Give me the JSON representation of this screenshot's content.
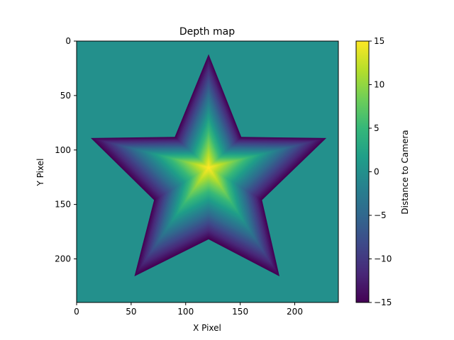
{
  "chart_data": {
    "type": "heatmap",
    "title": "Depth map",
    "xlabel": "X Pixel",
    "ylabel": "Y Pixel",
    "image_width": 240,
    "image_height": 240,
    "xlim": [
      0,
      240
    ],
    "ylim": [
      240,
      0
    ],
    "y_inverted": true,
    "x_ticks": [
      0,
      50,
      100,
      150,
      200
    ],
    "y_ticks": [
      0,
      50,
      100,
      150,
      200
    ],
    "background_value": 0,
    "star": {
      "center": [
        121,
        116
      ],
      "outer_vertices": [
        [
          121,
          12
        ],
        [
          229,
          89
        ],
        [
          186,
          216
        ],
        [
          53,
          216
        ],
        [
          13,
          89
        ]
      ],
      "inner_vertices": [
        [
          151,
          88
        ],
        [
          170,
          146
        ],
        [
          121,
          182
        ],
        [
          71,
          146
        ],
        [
          90,
          88
        ]
      ],
      "center_value": 15,
      "edge_value": -15
    },
    "colorbar": {
      "label": "Distance to Camera",
      "min": -15,
      "max": 15,
      "ticks": [
        -15,
        -10,
        -5,
        0,
        5,
        10,
        15
      ],
      "colormap": "viridis",
      "colors": [
        "#440154",
        "#482878",
        "#3e4989",
        "#31688e",
        "#26828e",
        "#1f9e89",
        "#35b779",
        "#6ece58",
        "#b5de2b",
        "#fde725"
      ]
    }
  }
}
